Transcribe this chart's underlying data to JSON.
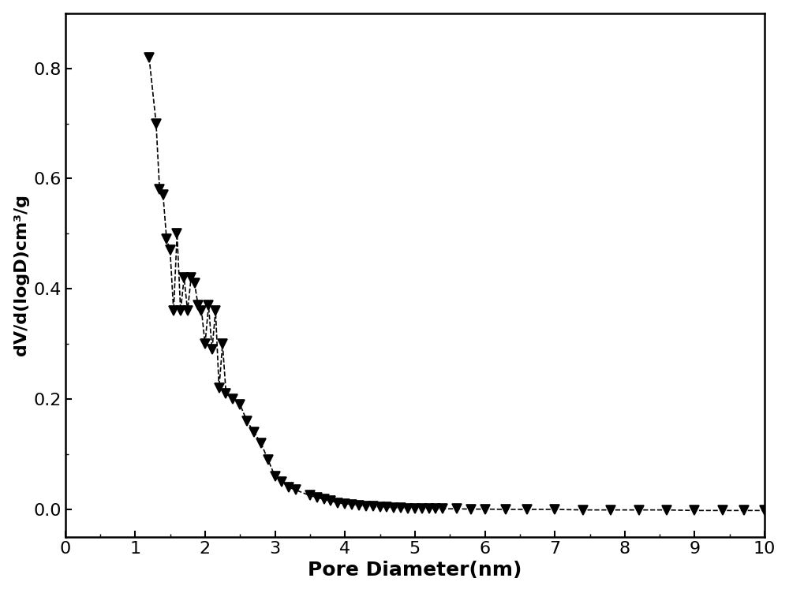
{
  "x": [
    1.2,
    1.3,
    1.35,
    1.4,
    1.45,
    1.5,
    1.55,
    1.6,
    1.65,
    1.7,
    1.75,
    1.8,
    1.85,
    1.9,
    1.95,
    2.0,
    2.05,
    2.1,
    2.15,
    2.2,
    2.25,
    2.3,
    2.4,
    2.5,
    2.6,
    2.7,
    2.8,
    2.9,
    3.0,
    3.1,
    3.2,
    3.3,
    3.5,
    3.6,
    3.7,
    3.8,
    3.9,
    4.0,
    4.1,
    4.2,
    4.3,
    4.4,
    4.5,
    4.6,
    4.7,
    4.8,
    4.9,
    5.0,
    5.1,
    5.2,
    5.3,
    5.4,
    5.6,
    5.8,
    6.0,
    6.3,
    6.6,
    7.0,
    7.4,
    7.8,
    8.2,
    8.6,
    9.0,
    9.4,
    9.7,
    10.0
  ],
  "y": [
    0.82,
    0.7,
    0.58,
    0.57,
    0.49,
    0.47,
    0.36,
    0.5,
    0.36,
    0.42,
    0.36,
    0.42,
    0.41,
    0.37,
    0.36,
    0.3,
    0.37,
    0.29,
    0.36,
    0.22,
    0.3,
    0.21,
    0.2,
    0.19,
    0.16,
    0.14,
    0.12,
    0.09,
    0.06,
    0.05,
    0.04,
    0.035,
    0.025,
    0.022,
    0.018,
    0.015,
    0.012,
    0.01,
    0.009,
    0.007,
    0.006,
    0.005,
    0.004,
    0.004,
    0.003,
    0.003,
    0.002,
    0.002,
    0.002,
    0.001,
    0.001,
    0.001,
    0.001,
    0.0005,
    0.0005,
    0.0,
    0.0,
    0.0,
    -0.001,
    -0.001,
    -0.001,
    -0.001,
    -0.002,
    -0.002,
    -0.002,
    -0.002
  ],
  "xlim": [
    0,
    10
  ],
  "ylim": [
    -0.05,
    0.9
  ],
  "xticks": [
    0,
    1,
    2,
    3,
    4,
    5,
    6,
    7,
    8,
    9,
    10
  ],
  "yticks": [
    0.0,
    0.2,
    0.4,
    0.6,
    0.8
  ],
  "xlabel": "Pore Diameter(nm)",
  "ylabel": "dV/d(logD)cm³/g",
  "line_color": "#000000",
  "marker_color": "#000000",
  "line_style": "--",
  "marker_style": "v",
  "marker_size": 8,
  "line_width": 1.2,
  "bg_color": "#ffffff",
  "xlabel_fontsize": 18,
  "ylabel_fontsize": 16,
  "tick_fontsize": 16,
  "fig_width": 10.0,
  "fig_height": 7.52
}
